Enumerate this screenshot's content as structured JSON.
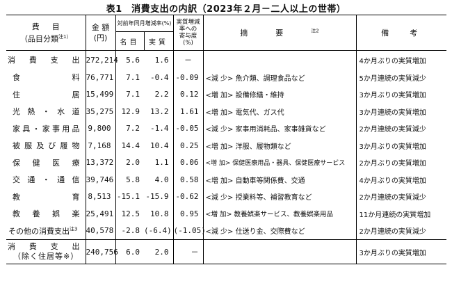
{
  "title": "表1　消費支出の内訳（2023年２月－二人以上の世帯）",
  "header": {
    "item_1": "費目",
    "item_2": "（品目分類",
    "item_note": "注1）",
    "amount_1": "金 額",
    "amount_2": "(円)",
    "yoy": "対前年同月増減率(%)",
    "nominal": "名目",
    "real": "実質",
    "contrib_1": "実質増減",
    "contrib_2": "率への",
    "contrib_3": "寄与度",
    "contrib_4": "(%)",
    "summary": "摘要",
    "summary_note": "注2",
    "remarks": "備考"
  },
  "rows": [
    {
      "name": "消費支出",
      "amount": "272,214",
      "nominal": "5.6",
      "real": "1.6",
      "contribution": "－",
      "summary": "",
      "remark": "4か月ぶりの実質増加"
    },
    {
      "name": "食料",
      "amount": "76,771",
      "nominal": "7.1",
      "real": "-0.4",
      "contribution": "-0.09",
      "summary": "<減 少> 魚介類、調理食品など",
      "remark": "5か月連続の実質減少"
    },
    {
      "name": "住居",
      "amount": "15,499",
      "nominal": "7.1",
      "real": "2.2",
      "contribution": "0.12",
      "summary": "<増 加> 設備修繕・維持",
      "remark": "3か月ぶりの実質増加"
    },
    {
      "name": "光熱・水道",
      "amount": "35,275",
      "nominal": "12.9",
      "real": "13.2",
      "contribution": "1.61",
      "summary": "<増 加> 電気代、ガス代",
      "remark": "3か月連続の実質増加"
    },
    {
      "name": "家具・家事用品",
      "amount": "9,800",
      "nominal": "7.2",
      "real": "-1.4",
      "contribution": "-0.05",
      "summary": "<減 少> 家事用消耗品、家事雑貨など",
      "remark": "2か月連続の実質減少"
    },
    {
      "name": "被服及び履物",
      "amount": "7,168",
      "nominal": "14.4",
      "real": "10.4",
      "contribution": "0.25",
      "summary": "<増 加> 洋服、履物類など",
      "remark": "3か月ぶりの実質増加"
    },
    {
      "name": "保健医療",
      "amount": "13,372",
      "nominal": "2.0",
      "real": "1.1",
      "contribution": "0.06",
      "summary": "<増 加> 保健医療用品・器具、保健医療サービス",
      "remark": "2か月ぶりの実質増加"
    },
    {
      "name": "交通・通信",
      "amount": "39,746",
      "nominal": "5.8",
      "real": "4.0",
      "contribution": "0.58",
      "summary": "<増 加> 自動車等関係費、交通",
      "remark": "4か月ぶりの実質増加"
    },
    {
      "name": "教育",
      "amount": "8,513",
      "nominal": "-15.1",
      "real": "-15.9",
      "contribution": "-0.62",
      "summary": "<減 少> 授業料等、補習教育など",
      "remark": "2か月連続の実質減少"
    },
    {
      "name": "教養娯楽",
      "amount": "25,491",
      "nominal": "12.5",
      "real": "10.8",
      "contribution": "0.95",
      "summary": "<増 加> 教養娯楽サービス、教養娯楽用品",
      "remark": "11か月連続の実質増加"
    },
    {
      "name": "その他の消費支出",
      "name_note": "注3",
      "amount": "40,578",
      "nominal": "-2.8",
      "real": "(-6.4)",
      "contribution": "(-1.05)",
      "summary": "<減 少> 仕送り金、交際費など",
      "remark": "2か月連続の実質減少"
    }
  ],
  "footer_row": {
    "name_1": "消費支出",
    "name_2": "（除く住居等※）",
    "amount": "240,756",
    "nominal": "6.0",
    "real": "2.0",
    "contribution": "－",
    "summary": "",
    "remark": "3か月ぶりの実質増加"
  }
}
